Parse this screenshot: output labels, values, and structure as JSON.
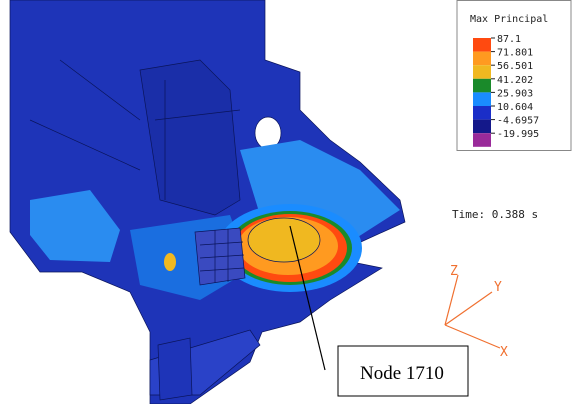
{
  "legend": {
    "title": "Max Principal",
    "labels": [
      "87.1",
      "71.801",
      "56.501",
      "41.202",
      "25.903",
      "10.604",
      "-4.6957",
      "-19.995"
    ],
    "colors": [
      "#ff4a10",
      "#ff9a20",
      "#f0b820",
      "#1a8a2a",
      "#1a8cff",
      "#1a2ec8",
      "#14188a",
      "#9a2a9a"
    ]
  },
  "time_label": "Time: 0.388 s",
  "triad": {
    "z": "Z",
    "y": "Y",
    "x": "X"
  },
  "node_label": "Node 1710"
}
